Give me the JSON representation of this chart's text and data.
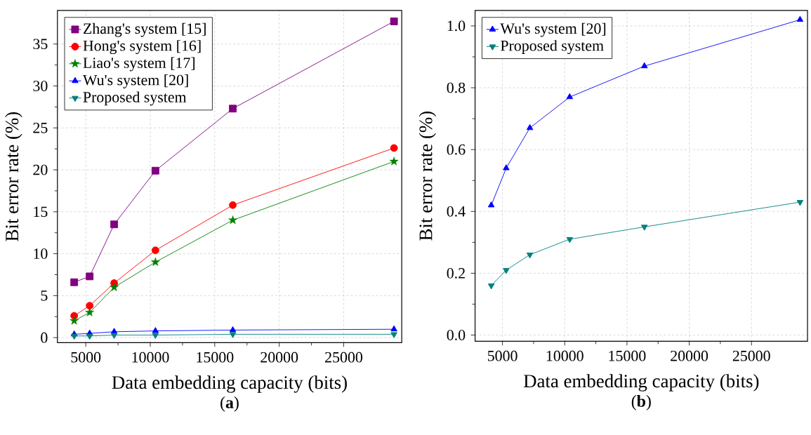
{
  "chart_data": [
    {
      "type": "line",
      "xlabel": "Data embedding capacity (bits)",
      "ylabel": "Bit error rate (%)",
      "x": [
        4100,
        5300,
        7200,
        10400,
        16400,
        28900
      ],
      "series": [
        {
          "name": "Zhang's system [15]",
          "color": "#800080",
          "marker": "square",
          "values": [
            6.6,
            7.3,
            13.5,
            19.9,
            27.3,
            37.7
          ]
        },
        {
          "name": "Hong's system [16]",
          "color": "#ff0000",
          "marker": "circle",
          "values": [
            2.6,
            3.8,
            6.5,
            10.4,
            15.8,
            22.6
          ]
        },
        {
          "name": "Liao's system [17]",
          "color": "#008000",
          "marker": "star",
          "values": [
            2.0,
            3.0,
            6.0,
            9.0,
            14.0,
            21.0
          ]
        },
        {
          "name": "Wu's system [20]",
          "color": "#0000ff",
          "marker": "triangle",
          "values": [
            0.4,
            0.5,
            0.7,
            0.8,
            0.9,
            1.0
          ]
        },
        {
          "name": "Proposed system",
          "color": "#008080",
          "marker": "triangle_down",
          "values": [
            0.2,
            0.2,
            0.3,
            0.3,
            0.4,
            0.4
          ]
        }
      ],
      "xlim": [
        2800,
        29500
      ],
      "xticks": [
        5000,
        10000,
        15000,
        20000,
        25000
      ],
      "ylim": [
        -0.6,
        39
      ],
      "yticks": [
        0,
        5,
        10,
        15,
        20,
        25,
        30,
        35
      ],
      "grid": true,
      "legend": "top left",
      "line_style": "solid",
      "annotations": [
        "(**a**)"
      ]
    },
    {
      "type": "line",
      "xlabel": "Data embedding capacity (bits)",
      "ylabel": "Bit error rate (%)",
      "x": [
        4100,
        5300,
        7200,
        10400,
        16400,
        28900
      ],
      "series": [
        {
          "name": "Wu's system [20]",
          "color": "#0000ff",
          "marker": "triangle",
          "values": [
            0.42,
            0.54,
            0.67,
            0.77,
            0.87,
            1.02
          ]
        },
        {
          "name": "Proposed system",
          "color": "#008080",
          "marker": "triangle_down",
          "values": [
            0.16,
            0.21,
            0.26,
            0.31,
            0.35,
            0.43
          ]
        }
      ],
      "xlim": [
        2800,
        29500
      ],
      "xticks": [
        5000,
        10000,
        15000,
        20000,
        25000
      ],
      "ylim": [
        -0.02,
        1.05
      ],
      "yticks": [
        {
          "value": 0,
          "label": "0.0"
        },
        0.2,
        0.4,
        0.6,
        0.8,
        {
          "value": 1,
          "label": "1.0"
        }
      ],
      "grid": true,
      "legend": "top left",
      "line_style": "solid",
      "annotations": [
        "(**b**)"
      ]
    }
  ]
}
